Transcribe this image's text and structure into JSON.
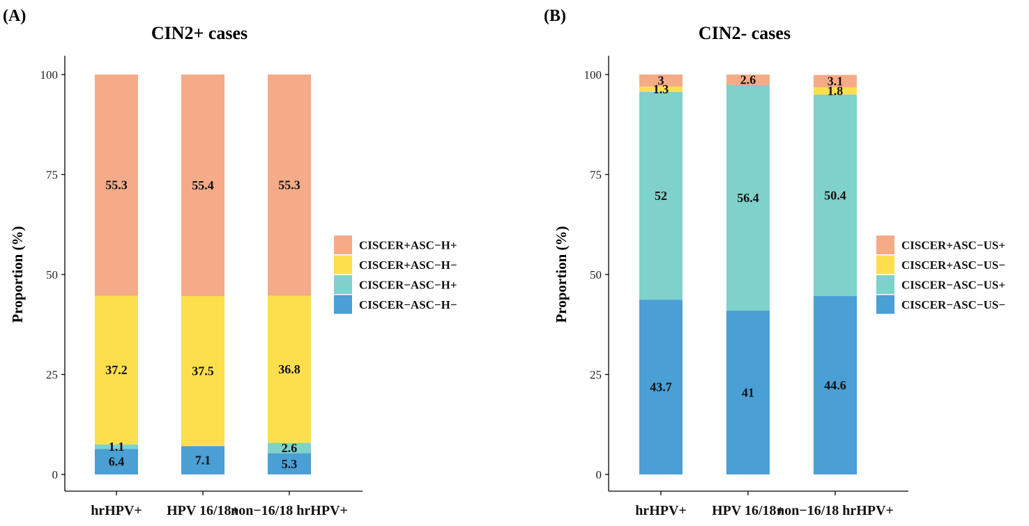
{
  "chart_data": [
    {
      "type": "bar",
      "stacked": true,
      "panel_label": "(A)",
      "title": "CIN2+ cases",
      "xlabel": "",
      "ylabel": "Proportion (%)",
      "ylim": [
        0,
        100
      ],
      "yticks": [
        "0",
        "25",
        "50",
        "75",
        "100"
      ],
      "grid": false,
      "legend_position": "right",
      "categories": [
        "hrHPV+",
        "HPV 16/18+",
        "non−16/18 hrHPV+"
      ],
      "series": [
        {
          "name": "CISCER−ASC−H−",
          "color": "#4A9FD4",
          "values": [
            6.4,
            7.1,
            5.3
          ],
          "labels": [
            "6.4",
            "7.1",
            "5.3"
          ]
        },
        {
          "name": "CISCER−ASC−H+",
          "color": "#7FD1CB",
          "values": [
            1.1,
            0,
            2.6
          ],
          "labels": [
            "1.1",
            "",
            "2.6"
          ]
        },
        {
          "name": "CISCER+ASC−H−",
          "color": "#FDDF4E",
          "values": [
            37.2,
            37.5,
            36.8
          ],
          "labels": [
            "37.2",
            "37.5",
            "36.8"
          ]
        },
        {
          "name": "CISCER+ASC−H+",
          "color": "#F5AA88",
          "values": [
            55.3,
            55.4,
            55.3
          ],
          "labels": [
            "55.3",
            "55.4",
            "55.3"
          ]
        }
      ],
      "legend_order": [
        "CISCER+ASC−H+",
        "CISCER+ASC−H−",
        "CISCER−ASC−H+",
        "CISCER−ASC−H−"
      ]
    },
    {
      "type": "bar",
      "stacked": true,
      "panel_label": "(B)",
      "title": "CIN2- cases",
      "xlabel": "",
      "ylabel": "Proportion (%)",
      "ylim": [
        0,
        100
      ],
      "yticks": [
        "0",
        "25",
        "50",
        "75",
        "100"
      ],
      "grid": false,
      "legend_position": "right",
      "categories": [
        "hrHPV+",
        "HPV 16/18+",
        "non−16/18 hrHPV+"
      ],
      "series": [
        {
          "name": "CISCER−ASC−US−",
          "color": "#4A9FD4",
          "values": [
            43.7,
            41,
            44.6
          ],
          "labels": [
            "43.7",
            "41",
            "44.6"
          ]
        },
        {
          "name": "CISCER−ASC−US+",
          "color": "#7FD1CB",
          "values": [
            52,
            56.4,
            50.4
          ],
          "labels": [
            "52",
            "56.4",
            "50.4"
          ]
        },
        {
          "name": "CISCER+ASC−US−",
          "color": "#FDDF4E",
          "values": [
            1.3,
            0,
            1.8
          ],
          "labels": [
            "1.3",
            "",
            "1.8"
          ]
        },
        {
          "name": "CISCER+ASC−US+",
          "color": "#F5AA88",
          "values": [
            3,
            2.6,
            3.1
          ],
          "labels": [
            "3",
            "2.6",
            "3.1"
          ]
        }
      ],
      "legend_order": [
        "CISCER+ASC−US+",
        "CISCER+ASC−US−",
        "CISCER−ASC−US+",
        "CISCER−ASC−US−"
      ]
    }
  ]
}
